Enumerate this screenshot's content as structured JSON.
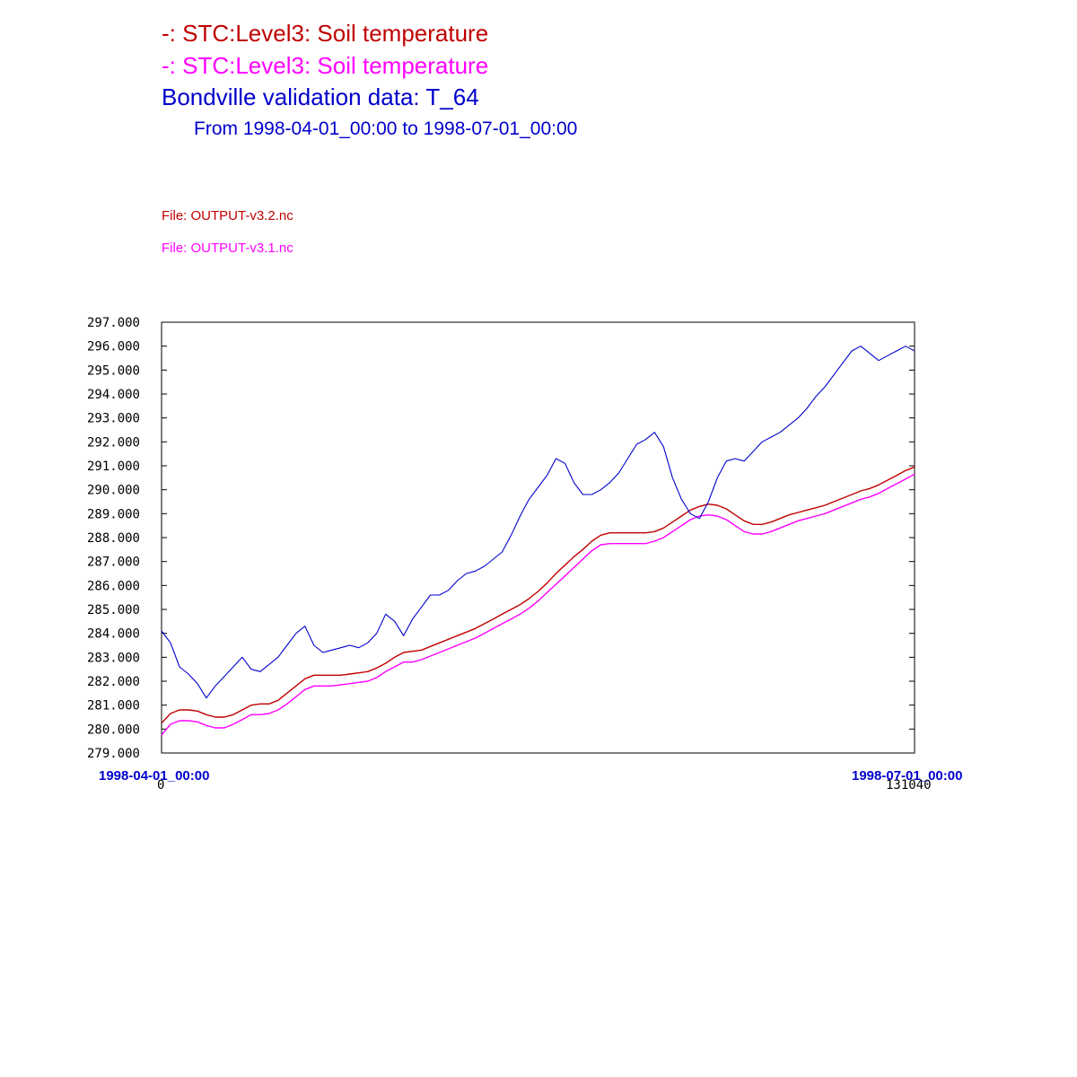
{
  "header": {
    "line1": "-:  STC:Level3: Soil temperature",
    "line2": "-:  STC:Level3: Soil temperature",
    "line3": "Bondville validation data:  T_64",
    "range": "From 1998-04-01_00:00 to 1998-07-01_00:00"
  },
  "files": {
    "file1": "File: OUTPUT-v3.2.nc",
    "file2": "File: OUTPUT-v3.1.nc"
  },
  "colors": {
    "series1": "#c00000",
    "series2": "#ff00ff",
    "observed": "#0000cc",
    "axis": "#000000"
  },
  "chart_data": {
    "type": "line",
    "title": "Bondville validation data:  T_64",
    "xlabel": "",
    "ylabel": "",
    "xlim": [
      0,
      131040
    ],
    "ylim": [
      279,
      297
    ],
    "x_tick_labels": [
      "0",
      "131040"
    ],
    "x_date_labels": [
      "1998-04-01_00:00",
      "1998-07-01_00:00"
    ],
    "y_tick_labels": [
      "279.000",
      "280.000",
      "281.000",
      "282.000",
      "283.000",
      "284.000",
      "285.000",
      "286.000",
      "287.000",
      "288.000",
      "289.000",
      "290.000",
      "291.000",
      "292.000",
      "293.000",
      "294.000",
      "295.000",
      "296.000",
      "297.000"
    ],
    "grid": false,
    "series": [
      {
        "name": "STC:Level3: Soil temperature",
        "file": "OUTPUT-v3.2.nc",
        "x": [
          0,
          1560,
          3120,
          4680,
          6240,
          7800,
          9360,
          10920,
          12480,
          14040,
          15600,
          17160,
          18720,
          20280,
          21840,
          23400,
          24960,
          26520,
          28080,
          29640,
          31200,
          32760,
          34320,
          35880,
          37440,
          39000,
          40560,
          42120,
          43680,
          45240,
          46800,
          48360,
          49920,
          51480,
          53040,
          54600,
          56160,
          57720,
          59280,
          60840,
          62400,
          63960,
          65520,
          67080,
          68640,
          70200,
          71760,
          73320,
          74880,
          76440,
          78000,
          79560,
          81120,
          82680,
          84240,
          85800,
          87360,
          88920,
          90480,
          92040,
          93600,
          95160,
          96720,
          98280,
          99840,
          101400,
          102960,
          104520,
          106080,
          107640,
          109200,
          110760,
          112320,
          113880,
          115440,
          117000,
          118560,
          120120,
          121680,
          123240,
          124800,
          126360,
          127920,
          129480,
          131040
        ],
        "y": [
          280.25,
          280.65,
          280.8,
          280.8,
          280.75,
          280.6,
          280.5,
          280.5,
          280.6,
          280.8,
          281.0,
          281.05,
          281.05,
          281.2,
          281.5,
          281.8,
          282.1,
          282.25,
          282.25,
          282.25,
          282.25,
          282.3,
          282.35,
          282.4,
          282.55,
          282.75,
          283.0,
          283.2,
          283.25,
          283.3,
          283.45,
          283.6,
          283.75,
          283.9,
          284.05,
          284.2,
          284.4,
          284.6,
          284.8,
          285.0,
          285.2,
          285.45,
          285.75,
          286.1,
          286.5,
          286.85,
          287.2,
          287.5,
          287.85,
          288.1,
          288.2,
          288.2,
          288.2,
          288.2,
          288.2,
          288.25,
          288.4,
          288.65,
          288.9,
          289.15,
          289.3,
          289.4,
          289.35,
          289.2,
          288.95,
          288.7,
          288.55,
          288.55,
          288.65,
          288.8,
          288.95,
          289.05,
          289.15,
          289.25,
          289.35,
          289.5,
          289.65,
          289.8,
          289.95,
          290.05,
          290.2,
          290.4,
          290.6,
          290.8,
          290.95
        ]
      },
      {
        "name": "STC:Level3: Soil temperature",
        "file": "OUTPUT-v3.1.nc",
        "x": [
          0,
          1560,
          3120,
          4680,
          6240,
          7800,
          9360,
          10920,
          12480,
          14040,
          15600,
          17160,
          18720,
          20280,
          21840,
          23400,
          24960,
          26520,
          28080,
          29640,
          31200,
          32760,
          34320,
          35880,
          37440,
          39000,
          40560,
          42120,
          43680,
          45240,
          46800,
          48360,
          49920,
          51480,
          53040,
          54600,
          56160,
          57720,
          59280,
          60840,
          62400,
          63960,
          65520,
          67080,
          68640,
          70200,
          71760,
          73320,
          74880,
          76440,
          78000,
          79560,
          81120,
          82680,
          84240,
          85800,
          87360,
          88920,
          90480,
          92040,
          93600,
          95160,
          96720,
          98280,
          99840,
          101400,
          102960,
          104520,
          106080,
          107640,
          109200,
          110760,
          112320,
          113880,
          115440,
          117000,
          118560,
          120120,
          121680,
          123240,
          124800,
          126360,
          127920,
          129480,
          131040
        ],
        "y": [
          279.75,
          280.2,
          280.35,
          280.35,
          280.3,
          280.15,
          280.05,
          280.05,
          280.2,
          280.4,
          280.6,
          280.6,
          280.65,
          280.8,
          281.05,
          281.35,
          281.65,
          281.8,
          281.8,
          281.8,
          281.85,
          281.9,
          281.95,
          282.0,
          282.15,
          282.4,
          282.6,
          282.8,
          282.8,
          282.9,
          283.05,
          283.2,
          283.35,
          283.5,
          283.65,
          283.8,
          284.0,
          284.2,
          284.4,
          284.6,
          284.8,
          285.05,
          285.35,
          285.7,
          286.05,
          286.4,
          286.75,
          287.1,
          287.45,
          287.7,
          287.75,
          287.75,
          287.75,
          287.75,
          287.75,
          287.85,
          288.0,
          288.25,
          288.5,
          288.75,
          288.9,
          288.95,
          288.9,
          288.75,
          288.5,
          288.25,
          288.15,
          288.15,
          288.25,
          288.4,
          288.55,
          288.7,
          288.8,
          288.9,
          289.0,
          289.15,
          289.3,
          289.45,
          289.6,
          289.7,
          289.85,
          290.05,
          290.25,
          290.45,
          290.65
        ]
      },
      {
        "name": "Bondville validation data:  T_64",
        "x": [
          0,
          1560,
          3120,
          4680,
          6240,
          7800,
          9360,
          10920,
          12480,
          14040,
          15600,
          17160,
          18720,
          20280,
          21840,
          23400,
          24960,
          26520,
          28080,
          29640,
          31200,
          32760,
          34320,
          35880,
          37440,
          39000,
          40560,
          42120,
          43680,
          45240,
          46800,
          48360,
          49920,
          51480,
          53040,
          54600,
          56160,
          57720,
          59280,
          60840,
          62400,
          63960,
          65520,
          67080,
          68640,
          70200,
          71760,
          73320,
          74880,
          76440,
          78000,
          79560,
          81120,
          82680,
          84240,
          85800,
          87360,
          88920,
          90480,
          92040,
          93600,
          95160,
          96720,
          98280,
          99840,
          101400,
          102960,
          104520,
          106080,
          107640,
          109200,
          110760,
          112320,
          113880,
          115440,
          117000,
          118560,
          120120,
          121680,
          123240,
          124800,
          126360,
          127920,
          129480,
          131040
        ],
        "y": [
          284.1,
          283.6,
          282.6,
          282.3,
          281.9,
          281.3,
          281.8,
          282.2,
          282.6,
          283.0,
          282.5,
          282.4,
          282.7,
          283.0,
          283.5,
          284.0,
          284.3,
          283.5,
          283.2,
          283.3,
          283.4,
          283.5,
          283.4,
          283.6,
          284.0,
          284.8,
          284.5,
          283.9,
          284.6,
          285.1,
          285.6,
          285.6,
          285.8,
          286.2,
          286.5,
          286.6,
          286.8,
          287.1,
          287.4,
          288.1,
          288.9,
          289.6,
          290.1,
          290.6,
          291.3,
          291.1,
          290.3,
          289.8,
          289.8,
          290.0,
          290.3,
          290.7,
          291.3,
          291.9,
          292.1,
          292.4,
          291.8,
          290.5,
          289.6,
          289.0,
          288.8,
          289.5,
          290.5,
          291.2,
          291.3,
          291.2,
          291.6,
          292.0,
          292.2,
          292.4,
          292.7,
          293.0,
          293.4,
          293.9,
          294.3,
          294.8,
          295.3,
          295.8,
          296.0,
          295.7,
          295.4,
          295.6,
          295.8,
          296.0,
          295.8
        ]
      }
    ]
  }
}
